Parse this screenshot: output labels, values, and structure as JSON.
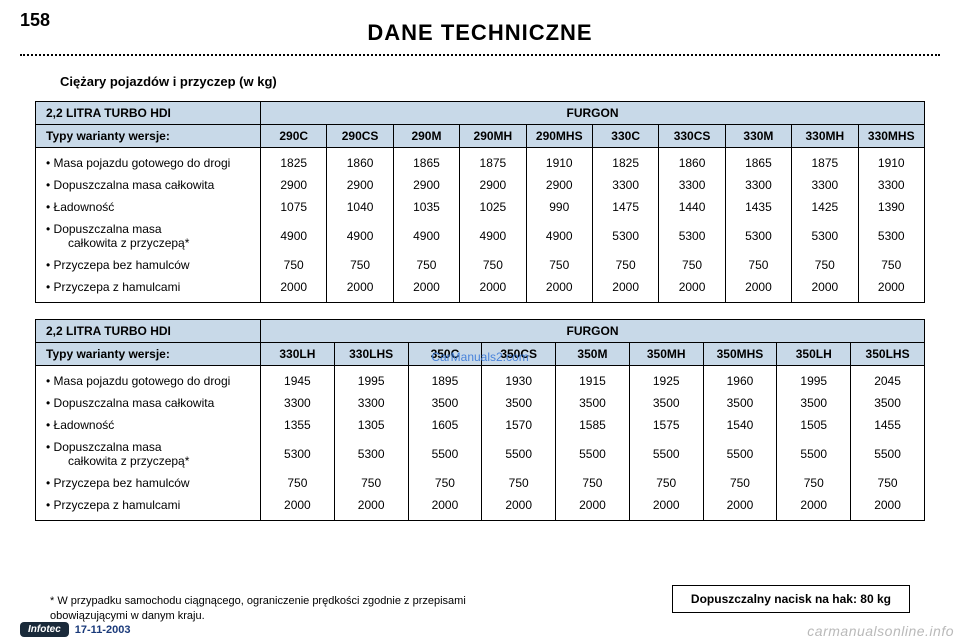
{
  "page_number": "158",
  "title": "DANE TECHNICZNE",
  "section_title": "Ciężary pojazdów i przyczep (w kg)",
  "watermark": "CarManuals2.com",
  "site_watermark": "carmanualsonline.info",
  "header_bg": "#c8d9e8",
  "table1": {
    "corner": "2,2 LITRA TURBO HDI",
    "group": "FURGON",
    "row_label": "Typy warianty wersje:",
    "cols": [
      "290C",
      "290CS",
      "290M",
      "290MH",
      "290MHS",
      "330C",
      "330CS",
      "330M",
      "330MH",
      "330MHS"
    ],
    "rows": [
      {
        "label": "• Masa pojazdu gotowego do drogi",
        "vals": [
          "1825",
          "1860",
          "1865",
          "1875",
          "1910",
          "1825",
          "1860",
          "1865",
          "1875",
          "1910"
        ]
      },
      {
        "label": "• Dopuszczalna masa całkowita",
        "vals": [
          "2900",
          "2900",
          "2900",
          "2900",
          "2900",
          "3300",
          "3300",
          "3300",
          "3300",
          "3300"
        ]
      },
      {
        "label": "• Ładowność",
        "vals": [
          "1075",
          "1040",
          "1035",
          "1025",
          "990",
          "1475",
          "1440",
          "1435",
          "1425",
          "1390"
        ]
      },
      {
        "label": "• Dopuszczalna masa<br><span class='sub-indent'>całkowita z przyczepą*</span>",
        "vals": [
          "4900",
          "4900",
          "4900",
          "4900",
          "4900",
          "5300",
          "5300",
          "5300",
          "5300",
          "5300"
        ]
      },
      {
        "label": "• Przyczepa bez hamulców",
        "vals": [
          "750",
          "750",
          "750",
          "750",
          "750",
          "750",
          "750",
          "750",
          "750",
          "750"
        ]
      },
      {
        "label": "• Przyczepa z hamulcami",
        "vals": [
          "2000",
          "2000",
          "2000",
          "2000",
          "2000",
          "2000",
          "2000",
          "2000",
          "2000",
          "2000"
        ]
      }
    ]
  },
  "table2": {
    "corner": "2,2 LITRA TURBO HDI",
    "group": "FURGON",
    "row_label": "Typy warianty wersje:",
    "cols": [
      "330LH",
      "330LHS",
      "350C",
      "350CS",
      "350M",
      "350MH",
      "350MHS",
      "350LH",
      "350LHS"
    ],
    "rows": [
      {
        "label": "• Masa pojazdu gotowego do drogi",
        "vals": [
          "1945",
          "1995",
          "1895",
          "1930",
          "1915",
          "1925",
          "1960",
          "1995",
          "2045"
        ]
      },
      {
        "label": "• Dopuszczalna masa całkowita",
        "vals": [
          "3300",
          "3300",
          "3500",
          "3500",
          "3500",
          "3500",
          "3500",
          "3500",
          "3500"
        ]
      },
      {
        "label": "• Ładowność",
        "vals": [
          "1355",
          "1305",
          "1605",
          "1570",
          "1585",
          "1575",
          "1540",
          "1505",
          "1455"
        ]
      },
      {
        "label": "• Dopuszczalna masa<br><span class='sub-indent'>całkowita z przyczepą*</span>",
        "vals": [
          "5300",
          "5300",
          "5500",
          "5500",
          "5500",
          "5500",
          "5500",
          "5500",
          "5500"
        ]
      },
      {
        "label": "• Przyczepa bez hamulców",
        "vals": [
          "750",
          "750",
          "750",
          "750",
          "750",
          "750",
          "750",
          "750",
          "750"
        ]
      },
      {
        "label": "• Przyczepa z hamulcami",
        "vals": [
          "2000",
          "2000",
          "2000",
          "2000",
          "2000",
          "2000",
          "2000",
          "2000",
          "2000"
        ]
      }
    ]
  },
  "footnote": "* W przypadku samochodu ciągnącego, ograniczenie prędkości zgodnie z przepisami obowiązującymi w danym kraju.",
  "hak": "Dopuszczalny nacisk na hak: 80 kg",
  "infotec_label": "Infotec",
  "infotec_date": "17-11-2003"
}
